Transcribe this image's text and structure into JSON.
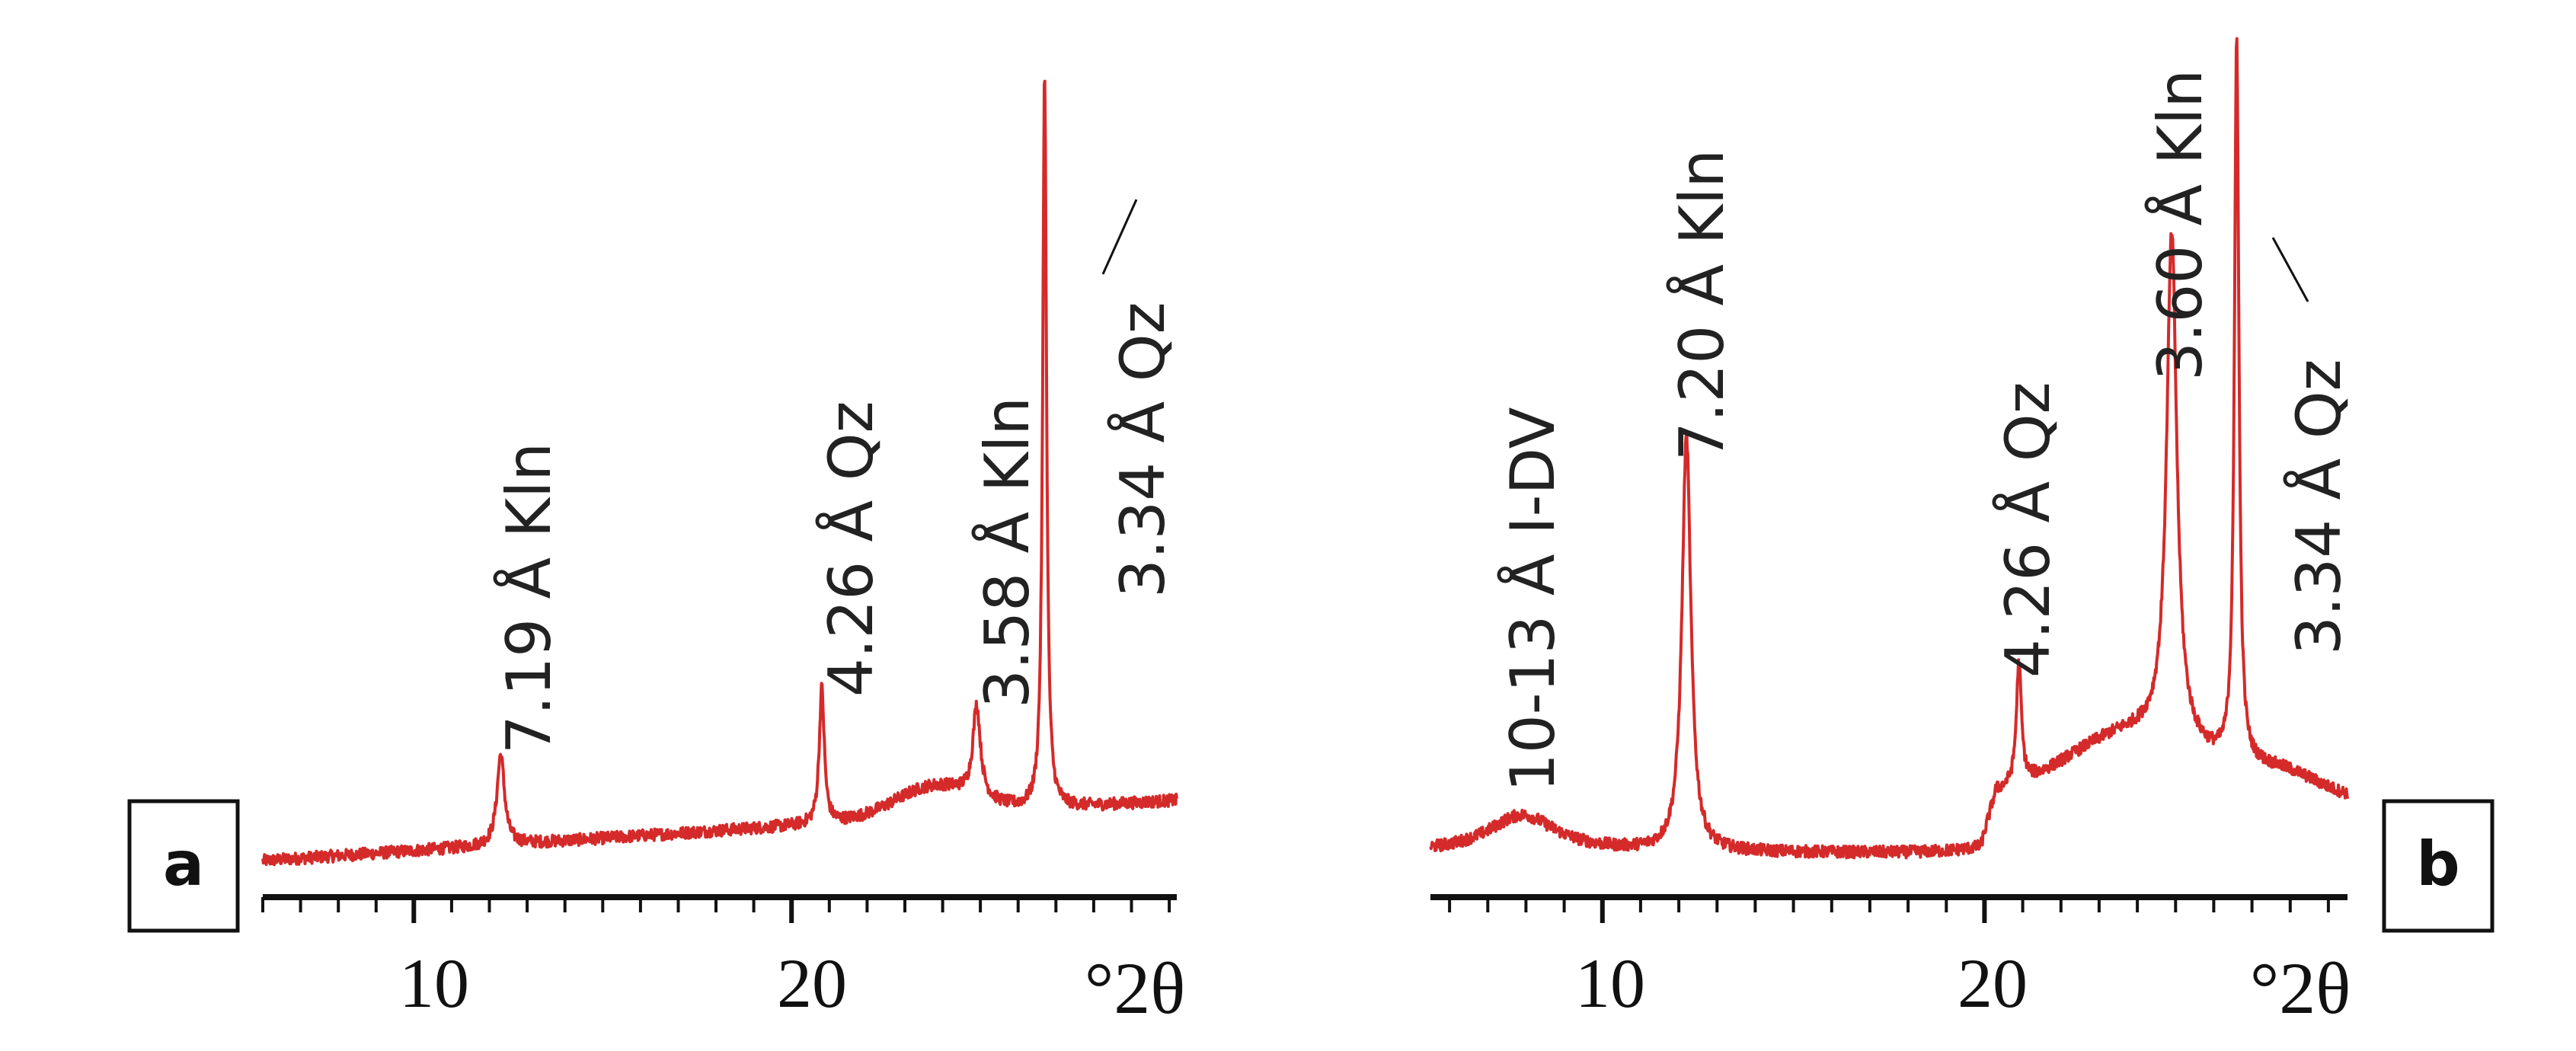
{
  "figure": {
    "trace_color": "#d42a2a",
    "axis_color": "#111111",
    "panels": [
      {
        "letter": "a",
        "unit_label": "°2θ",
        "tick_labels": [
          "10",
          "20"
        ]
      },
      {
        "letter": "b",
        "unit_label": "°2θ",
        "tick_labels": [
          "10",
          "20"
        ]
      }
    ]
  },
  "chart_data": [
    {
      "type": "line",
      "panel": "a",
      "title": "",
      "xlabel": "°2θ",
      "ylabel": "",
      "xlim": [
        6,
        30.2
      ],
      "ylim": [
        0,
        100
      ],
      "xticks_major": [
        10,
        20
      ],
      "xticks_minor_step": 1,
      "grid": false,
      "baseline": {
        "from": 3,
        "to": 11,
        "start_x": 6,
        "end_x": 30.2
      },
      "peaks": [
        {
          "label": "7.19 Å Kln",
          "x": 12.3,
          "height": 12,
          "width": 0.12
        },
        {
          "label": "4.26 Å Qz",
          "x": 20.8,
          "height": 18,
          "width": 0.08
        },
        {
          "label": "3.58 Å Kln",
          "x": 24.9,
          "height": 12,
          "width": 0.12
        },
        {
          "label": "3.34 Å Qz",
          "x": 26.7,
          "height": 98,
          "width": 0.06
        }
      ],
      "humps": [
        {
          "x": 23.8,
          "height": 4,
          "width": 1.5
        }
      ],
      "annotations": [
        "7.19 Å Kln",
        "4.26 Å Qz",
        "3.58 Å Kln",
        "3.34 Å Qz"
      ]
    },
    {
      "type": "line",
      "panel": "b",
      "title": "",
      "xlabel": "°2θ",
      "ylabel": "",
      "xlim": [
        5.5,
        29.5
      ],
      "ylim": [
        0,
        100
      ],
      "xticks_major": [
        10,
        20
      ],
      "xticks_minor_step": 1,
      "grid": false,
      "baseline": {
        "from": 4,
        "to": 4,
        "start_x": 5.5,
        "end_x": 29.5
      },
      "peaks": [
        {
          "label": "10-13 Å I-DV",
          "x": 7.9,
          "height": 5,
          "width": 1.1
        },
        {
          "label": "7.20 Å Kln",
          "x": 12.2,
          "height": 55,
          "width": 0.14
        },
        {
          "label": "4.26 Å Qz",
          "x": 20.9,
          "height": 16,
          "width": 0.08
        },
        {
          "label": "3.60 Å Kln",
          "x": 24.9,
          "height": 67,
          "width": 0.16
        },
        {
          "label": "3.34 Å Qz",
          "x": 26.6,
          "height": 96,
          "width": 0.07
        }
      ],
      "humps": [
        {
          "x": 24.0,
          "height": 9,
          "width": 2.6
        },
        {
          "x": 27.8,
          "height": 3,
          "width": 1.4
        }
      ],
      "step": {
        "x": 19.9,
        "to": 7,
        "end": 29.5
      },
      "annotations": [
        "10-13 Å  I-DV",
        "7.20 Å Kln",
        "4.26 Å Qz",
        "3.60 Å Kln",
        "3.34 Å Qz"
      ]
    }
  ]
}
